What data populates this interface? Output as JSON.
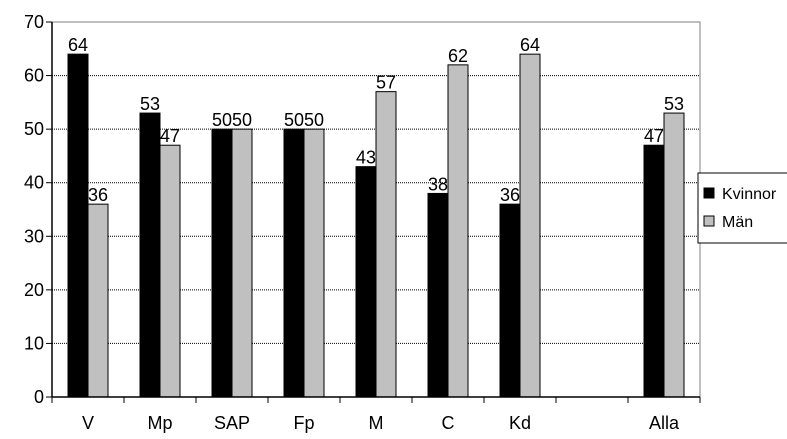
{
  "chart_data": {
    "type": "bar",
    "categories": [
      "V",
      "Mp",
      "SAP",
      "Fp",
      "M",
      "C",
      "Kd",
      "",
      "Alla"
    ],
    "series": [
      {
        "name": "Kvinnor",
        "color": "#000000",
        "values": [
          64,
          53,
          50,
          50,
          43,
          38,
          36,
          null,
          47
        ]
      },
      {
        "name": "Män",
        "color": "#c0c0c0",
        "values": [
          36,
          47,
          50,
          50,
          57,
          62,
          64,
          null,
          53
        ]
      }
    ],
    "ylim": [
      0,
      70
    ],
    "yticks": [
      0,
      10,
      20,
      30,
      40,
      50,
      60,
      70
    ],
    "title": "",
    "xlabel": "",
    "ylabel": "",
    "grid": "horizontal dotted",
    "legend_position": "right",
    "data_labels": true
  }
}
